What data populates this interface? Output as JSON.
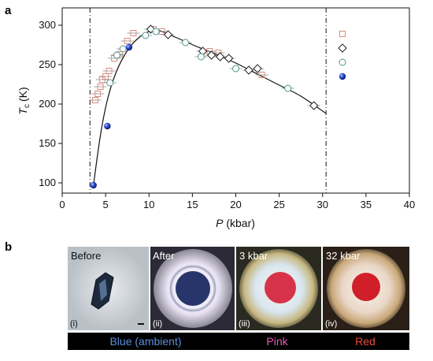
{
  "panel_a_label": "a",
  "panel_b_label": "b",
  "chart_data": {
    "type": "scatter",
    "xlabel_var": "P",
    "xlabel_unit": "(kbar)",
    "ylabel_var": "T",
    "ylabel_sub": "c",
    "ylabel_unit": "(K)",
    "xlim": [
      0,
      40
    ],
    "ylim": [
      87,
      322
    ],
    "xticks": [
      0,
      5,
      10,
      15,
      20,
      25,
      30,
      35,
      40
    ],
    "yticks": [
      100,
      150,
      200,
      250,
      300
    ],
    "vlines": [
      3.2,
      30.4
    ],
    "series": [
      {
        "name": "squares",
        "marker": "square",
        "color": "#d98c80",
        "points": [
          [
            3.8,
            205
          ],
          [
            4.1,
            213
          ],
          [
            4.4,
            222
          ],
          [
            4.6,
            231
          ],
          [
            5.0,
            235
          ],
          [
            5.4,
            242
          ],
          [
            6.0,
            258
          ],
          [
            6.6,
            263
          ],
          [
            7.5,
            280
          ],
          [
            8.2,
            290
          ],
          [
            10.5,
            295
          ],
          [
            11.5,
            292
          ],
          [
            17.0,
            267
          ],
          [
            18.0,
            265
          ],
          [
            23.0,
            237
          ]
        ]
      },
      {
        "name": "diamonds",
        "marker": "diamond",
        "color": "#222222",
        "points": [
          [
            10.2,
            295
          ],
          [
            12.2,
            288
          ],
          [
            16.2,
            267
          ],
          [
            17.2,
            262
          ],
          [
            18.2,
            260
          ],
          [
            19.2,
            258
          ],
          [
            21.5,
            243
          ],
          [
            22.5,
            245
          ],
          [
            29.0,
            198
          ]
        ]
      },
      {
        "name": "circles",
        "marker": "circle",
        "color": "#4d9488",
        "points": [
          [
            5.5,
            227
          ],
          [
            6.3,
            262
          ],
          [
            7.0,
            270
          ],
          [
            9.6,
            287
          ],
          [
            10.8,
            292
          ],
          [
            14.2,
            278
          ],
          [
            16.0,
            260
          ],
          [
            20.0,
            245
          ],
          [
            26.0,
            220
          ]
        ]
      },
      {
        "name": "blue spheres",
        "marker": "sphere",
        "color": "#1e3cc0",
        "points": [
          [
            3.6,
            97
          ],
          [
            5.2,
            172
          ],
          [
            7.7,
            272
          ]
        ]
      }
    ],
    "fit_curve": [
      [
        3.6,
        97
      ],
      [
        4.4,
        160
      ],
      [
        5.2,
        205
      ],
      [
        6.2,
        240
      ],
      [
        7.4,
        266
      ],
      [
        8.6,
        282
      ],
      [
        10.0,
        292
      ],
      [
        11.2,
        293
      ],
      [
        13.0,
        285
      ],
      [
        15.5,
        273
      ],
      [
        18.0,
        262
      ],
      [
        20.0,
        252
      ],
      [
        22.5,
        238
      ],
      [
        25.0,
        224
      ],
      [
        27.5,
        210
      ],
      [
        30.4,
        188
      ]
    ]
  },
  "panel_b": {
    "photos": [
      {
        "caption": "Before",
        "roman": "(i)"
      },
      {
        "caption": "After",
        "roman": "(ii)"
      },
      {
        "caption": "3 kbar",
        "roman": "(iii)"
      },
      {
        "caption": "32 kbar",
        "roman": "(iv)"
      }
    ],
    "color_bar": [
      {
        "label": "Blue (ambient)",
        "color": "#5b8fe0"
      },
      {
        "label": "Pink",
        "color": "#e85bb4"
      },
      {
        "label": "Red",
        "color": "#e84a3d"
      }
    ]
  }
}
